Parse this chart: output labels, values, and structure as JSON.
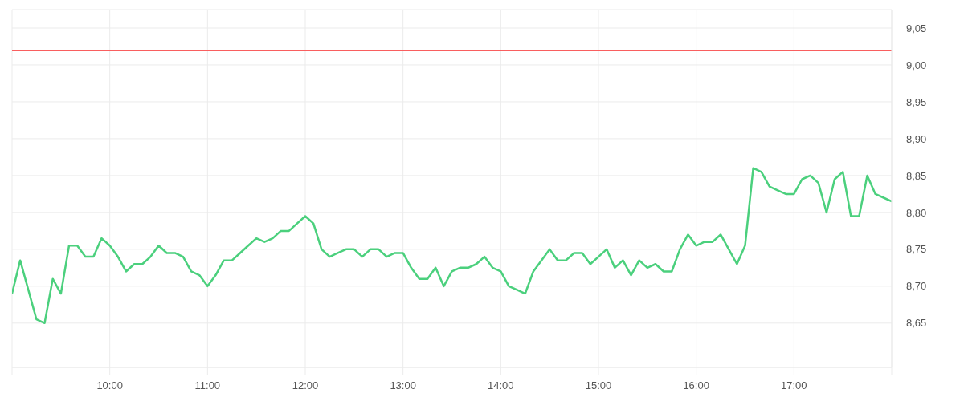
{
  "chart_data": {
    "type": "line",
    "x": [
      9,
      9.0833,
      9.1667,
      9.25,
      9.3333,
      9.4167,
      9.5,
      9.5833,
      9.6667,
      9.75,
      9.8333,
      9.9167,
      10,
      10.0833,
      10.1667,
      10.25,
      10.3333,
      10.4167,
      10.5,
      10.5833,
      10.6667,
      10.75,
      10.8333,
      10.9167,
      11,
      11.0833,
      11.1667,
      11.25,
      11.3333,
      11.4167,
      11.5,
      11.5833,
      11.6667,
      11.75,
      11.8333,
      11.9167,
      12,
      12.0833,
      12.1667,
      12.25,
      12.3333,
      12.4167,
      12.5,
      12.5833,
      12.6667,
      12.75,
      12.8333,
      12.9167,
      13,
      13.0833,
      13.1667,
      13.25,
      13.3333,
      13.4167,
      13.5,
      13.5833,
      13.6667,
      13.75,
      13.8333,
      13.9167,
      14,
      14.0833,
      14.1667,
      14.25,
      14.3333,
      14.4167,
      14.5,
      14.5833,
      14.6667,
      14.75,
      14.8333,
      14.9167,
      15,
      15.0833,
      15.1667,
      15.25,
      15.3333,
      15.4167,
      15.5,
      15.5833,
      15.6667,
      15.75,
      15.8333,
      15.9167,
      16,
      16.0833,
      16.1667,
      16.25,
      16.3333,
      16.4167,
      16.5,
      16.5833,
      16.6667,
      16.75,
      16.8333,
      16.9167,
      17,
      17.0833,
      17.1667,
      17.25,
      17.3333,
      17.4167,
      17.5,
      17.5833,
      17.6667,
      17.75,
      17.8333,
      17.9167,
      18
    ],
    "series": [
      {
        "color": "#4bd07d",
        "values": [
          8.69,
          8.735,
          8.695,
          8.655,
          8.65,
          8.71,
          8.69,
          8.755,
          8.755,
          8.74,
          8.74,
          8.765,
          8.755,
          8.74,
          8.72,
          8.73,
          8.73,
          8.74,
          8.755,
          8.745,
          8.745,
          8.74,
          8.72,
          8.715,
          8.7,
          8.715,
          8.735,
          8.735,
          8.745,
          8.755,
          8.765,
          8.76,
          8.765,
          8.775,
          8.775,
          8.785,
          8.795,
          8.785,
          8.75,
          8.74,
          8.745,
          8.75,
          8.75,
          8.74,
          8.75,
          8.75,
          8.74,
          8.745,
          8.745,
          8.725,
          8.71,
          8.71,
          8.725,
          8.7,
          8.72,
          8.725,
          8.725,
          8.73,
          8.74,
          8.725,
          8.72,
          8.7,
          8.695,
          8.69,
          8.72,
          8.735,
          8.75,
          8.735,
          8.735,
          8.745,
          8.745,
          8.73,
          8.74,
          8.75,
          8.725,
          8.735,
          8.715,
          8.735,
          8.725,
          8.73,
          8.72,
          8.72,
          8.75,
          8.77,
          8.755,
          8.76,
          8.76,
          8.77,
          8.75,
          8.73,
          8.755,
          8.86,
          8.855,
          8.835,
          8.83,
          8.825,
          8.825,
          8.845,
          8.85,
          8.84,
          8.8,
          8.845,
          8.855,
          8.795,
          8.795,
          8.85,
          8.825,
          8.82,
          8.815
        ]
      }
    ],
    "xlim": [
      9,
      18
    ],
    "ylim": [
      8.59,
      9.075
    ],
    "xticks": [
      {
        "value": 9,
        "label": null
      },
      {
        "value": 10,
        "label": "10:00"
      },
      {
        "value": 11,
        "label": "11:00"
      },
      {
        "value": 12,
        "label": "12:00"
      },
      {
        "value": 13,
        "label": "13:00"
      },
      {
        "value": 14,
        "label": "14:00"
      },
      {
        "value": 15,
        "label": "15:00"
      },
      {
        "value": 16,
        "label": "16:00"
      },
      {
        "value": 17,
        "label": "17:00"
      },
      {
        "value": 18,
        "label": null
      }
    ],
    "yticks": [
      {
        "value": 8.65,
        "label": "8,65"
      },
      {
        "value": 8.7,
        "label": "8,70"
      },
      {
        "value": 8.75,
        "label": "8,75"
      },
      {
        "value": 8.8,
        "label": "8,80"
      },
      {
        "value": 8.85,
        "label": "8,85"
      },
      {
        "value": 8.9,
        "label": "8,90"
      },
      {
        "value": 8.95,
        "label": "8,95"
      },
      {
        "value": 9,
        "label": "9,00"
      },
      {
        "value": 9.05,
        "label": "9,05"
      }
    ],
    "ref_lines": [
      {
        "axis": "y",
        "value": 9.02,
        "color": "#f95f5f"
      }
    ],
    "grid": true
  }
}
